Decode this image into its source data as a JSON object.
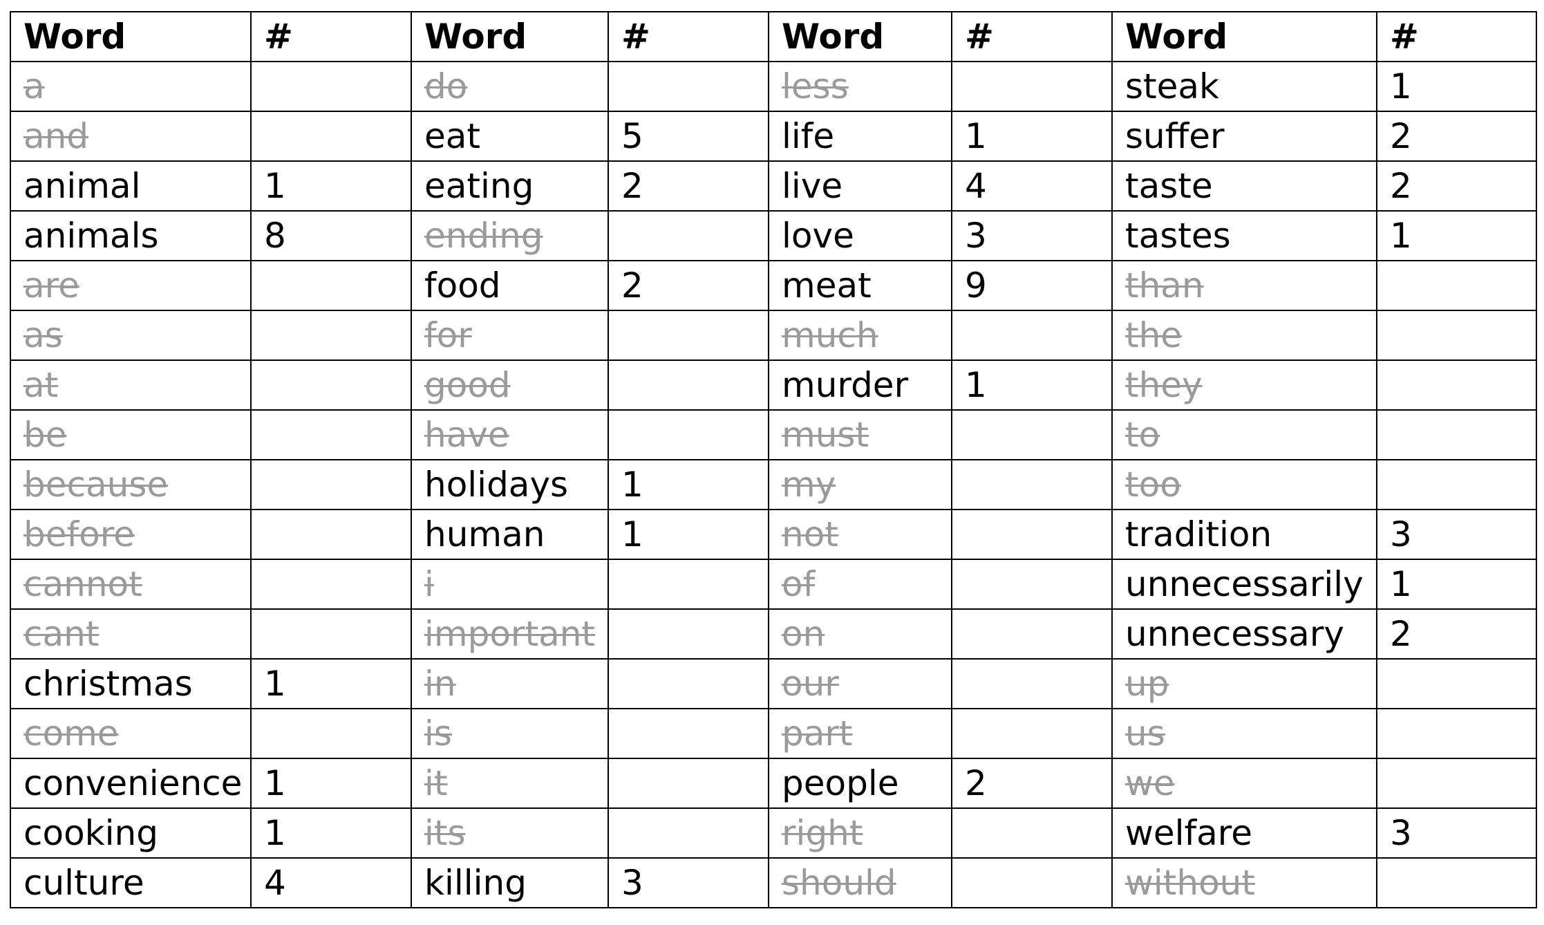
{
  "table": {
    "headers": [
      "Word",
      "#",
      "Word",
      "#",
      "Word",
      "#",
      "Word",
      "#"
    ],
    "rows": [
      [
        {
          "word": "a",
          "count": "",
          "struck": true
        },
        {
          "word": "do",
          "count": "",
          "struck": true
        },
        {
          "word": "less",
          "count": "",
          "struck": true
        },
        {
          "word": "steak",
          "count": "1",
          "struck": false
        }
      ],
      [
        {
          "word": "and",
          "count": "",
          "struck": true
        },
        {
          "word": "eat",
          "count": "5",
          "struck": false
        },
        {
          "word": "life",
          "count": "1",
          "struck": false
        },
        {
          "word": "suffer",
          "count": "2",
          "struck": false
        }
      ],
      [
        {
          "word": "animal",
          "count": "1",
          "struck": false
        },
        {
          "word": "eating",
          "count": "2",
          "struck": false
        },
        {
          "word": "live",
          "count": "4",
          "struck": false
        },
        {
          "word": "taste",
          "count": "2",
          "struck": false
        }
      ],
      [
        {
          "word": "animals",
          "count": "8",
          "struck": false
        },
        {
          "word": "ending",
          "count": "",
          "struck": true
        },
        {
          "word": "love",
          "count": "3",
          "struck": false
        },
        {
          "word": "tastes",
          "count": "1",
          "struck": false
        }
      ],
      [
        {
          "word": "are",
          "count": "",
          "struck": true
        },
        {
          "word": "food",
          "count": "2",
          "struck": false
        },
        {
          "word": "meat",
          "count": "9",
          "struck": false
        },
        {
          "word": "than",
          "count": "",
          "struck": true
        }
      ],
      [
        {
          "word": "as",
          "count": "",
          "struck": true
        },
        {
          "word": "for",
          "count": "",
          "struck": true
        },
        {
          "word": "much",
          "count": "",
          "struck": true
        },
        {
          "word": "the",
          "count": "",
          "struck": true
        }
      ],
      [
        {
          "word": "at",
          "count": "",
          "struck": true
        },
        {
          "word": "good",
          "count": "",
          "struck": true
        },
        {
          "word": "murder",
          "count": "1",
          "struck": false
        },
        {
          "word": "they",
          "count": "",
          "struck": true
        }
      ],
      [
        {
          "word": "be",
          "count": "",
          "struck": true
        },
        {
          "word": "have",
          "count": "",
          "struck": true
        },
        {
          "word": "must",
          "count": "",
          "struck": true
        },
        {
          "word": "to",
          "count": "",
          "struck": true
        }
      ],
      [
        {
          "word": "because",
          "count": "",
          "struck": true
        },
        {
          "word": "holidays",
          "count": "1",
          "struck": false
        },
        {
          "word": "my",
          "count": "",
          "struck": true
        },
        {
          "word": "too",
          "count": "",
          "struck": true
        }
      ],
      [
        {
          "word": "before",
          "count": "",
          "struck": true
        },
        {
          "word": "human",
          "count": "1",
          "struck": false
        },
        {
          "word": "not",
          "count": "",
          "struck": true
        },
        {
          "word": "tradition",
          "count": "3",
          "struck": false
        }
      ],
      [
        {
          "word": "cannot",
          "count": "",
          "struck": true
        },
        {
          "word": "i",
          "count": "",
          "struck": true
        },
        {
          "word": "of",
          "count": "",
          "struck": true
        },
        {
          "word": "unnecessarily",
          "count": "1",
          "struck": false
        }
      ],
      [
        {
          "word": "cant",
          "count": "",
          "struck": true
        },
        {
          "word": "important",
          "count": "",
          "struck": true
        },
        {
          "word": "on",
          "count": "",
          "struck": true
        },
        {
          "word": "unnecessary",
          "count": "2",
          "struck": false
        }
      ],
      [
        {
          "word": "christmas",
          "count": "1",
          "struck": false
        },
        {
          "word": "in",
          "count": "",
          "struck": true
        },
        {
          "word": "our",
          "count": "",
          "struck": true
        },
        {
          "word": "up",
          "count": "",
          "struck": true
        }
      ],
      [
        {
          "word": "come",
          "count": "",
          "struck": true
        },
        {
          "word": "is",
          "count": "",
          "struck": true
        },
        {
          "word": "part",
          "count": "",
          "struck": true
        },
        {
          "word": "us",
          "count": "",
          "struck": true
        }
      ],
      [
        {
          "word": "convenience",
          "count": "1",
          "struck": false
        },
        {
          "word": "it",
          "count": "",
          "struck": true
        },
        {
          "word": "people",
          "count": "2",
          "struck": false
        },
        {
          "word": "we",
          "count": "",
          "struck": true
        }
      ],
      [
        {
          "word": "cooking",
          "count": "1",
          "struck": false
        },
        {
          "word": "its",
          "count": "",
          "struck": true
        },
        {
          "word": "right",
          "count": "",
          "struck": true
        },
        {
          "word": "welfare",
          "count": "3",
          "struck": false
        }
      ],
      [
        {
          "word": "culture",
          "count": "4",
          "struck": false
        },
        {
          "word": "killing",
          "count": "3",
          "struck": false
        },
        {
          "word": "should",
          "count": "",
          "struck": true
        },
        {
          "word": "without",
          "count": "",
          "struck": true
        }
      ]
    ]
  }
}
